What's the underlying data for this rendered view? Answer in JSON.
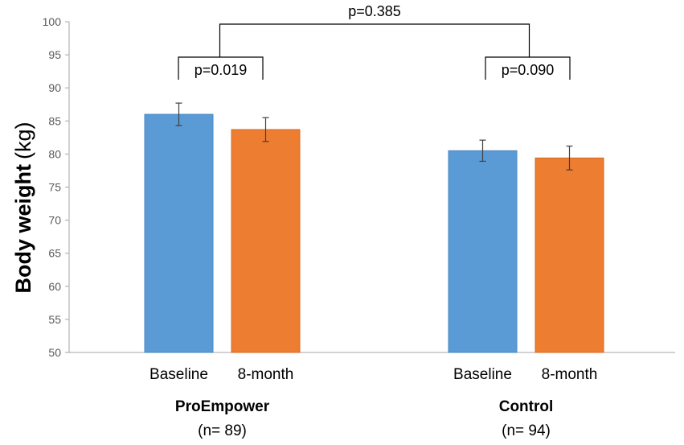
{
  "chart_data": {
    "type": "bar",
    "title": "",
    "ylabel": "Body weight",
    "ylabel_unit": "(kg)",
    "ylim": [
      50,
      100
    ],
    "yticks": [
      50,
      55,
      60,
      65,
      70,
      75,
      80,
      85,
      90,
      95,
      100
    ],
    "grid": false,
    "groups": [
      {
        "name": "ProEmpower",
        "n_label": "(n= 89)",
        "bars": [
          {
            "label": "Baseline",
            "value": 86.0,
            "err": 1.7
          },
          {
            "label": "8-month",
            "value": 83.7,
            "err": 1.8
          }
        ],
        "p_label": "p=0.019"
      },
      {
        "name": "Control",
        "n_label": "(n= 94)",
        "bars": [
          {
            "label": "Baseline",
            "value": 80.5,
            "err": 1.6
          },
          {
            "label": "8-month",
            "value": 79.4,
            "err": 1.8
          }
        ],
        "p_label": "p=0.090"
      }
    ],
    "between_group_p_label": "p=0.385",
    "colors": {
      "baseline": "#5b9bd5",
      "eight_month": "#ed7d31",
      "baseline_edge": "#4a87c0",
      "eight_month_edge": "#d46a22",
      "axis": "#a6a6a6",
      "errorbar": "#404040",
      "bracket": "#000000"
    }
  }
}
